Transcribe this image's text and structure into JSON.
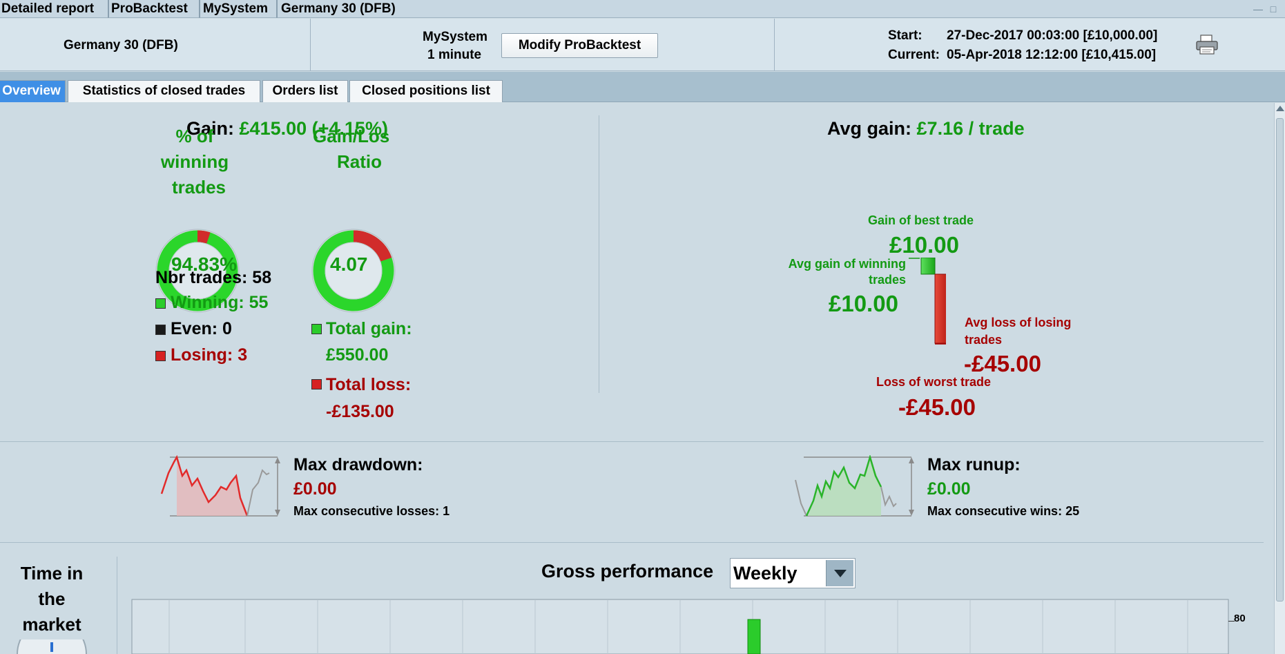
{
  "breadcrumb": [
    "Detailed report",
    "ProBacktest",
    "MySystem",
    "Germany 30 (DFB)"
  ],
  "header": {
    "instrument": "Germany 30 (DFB)",
    "system_name": "MySystem",
    "timeframe": "1 minute",
    "modify_button": "Modify ProBacktest",
    "start_label": "Start:",
    "start_value": "27-Dec-2017 00:03:00 [£10,000.00]",
    "current_label": "Current:",
    "current_value": "05-Apr-2018 12:12:00 [£10,415.00]"
  },
  "tabs": [
    {
      "label": "Overview",
      "active": true
    },
    {
      "label": "Statistics of closed trades",
      "active": false
    },
    {
      "label": "Orders list",
      "active": false
    },
    {
      "label": "Closed positions list",
      "active": false
    }
  ],
  "summary": {
    "gain_label": "Gain:",
    "gain_value": "£415.00 (+4.15%)",
    "winning_pct_title": [
      "% of",
      "winning",
      "trades"
    ],
    "winning_pct_value": "94.83%",
    "winning_pct_fraction": 0.9483,
    "gl_ratio_title": [
      "Gain/Los",
      "Ratio"
    ],
    "gl_ratio_value": "4.07",
    "gl_ratio_fraction": 0.803,
    "nbr_trades": "Nbr trades: 58",
    "winning": "Winning: 55",
    "even": "Even: 0",
    "losing": "Losing: 3",
    "total_gain_label": "Total gain:",
    "total_gain_value": "£550.00",
    "total_loss_label": "Total loss:",
    "total_loss_value": "-£135.00"
  },
  "avg": {
    "avg_gain_label": "Avg gain:",
    "avg_gain_value": "£7.16 / trade",
    "best_trade_label": "Gain of best trade",
    "best_trade_value": "£10.00",
    "avg_win_label": [
      "Avg gain of winning",
      "trades"
    ],
    "avg_win_value": "£10.00",
    "avg_loss_label": [
      "Avg loss of losing",
      "trades"
    ],
    "avg_loss_value": "-£45.00",
    "worst_trade_label": "Loss of worst trade",
    "worst_trade_value": "-£45.00"
  },
  "drawdown": {
    "title": "Max drawdown:",
    "value": "£0.00",
    "consecutive": "Max consecutive losses: 1"
  },
  "runup": {
    "title": "Max runup:",
    "value": "£0.00",
    "consecutive": "Max consecutive wins: 25"
  },
  "time_in_market": {
    "title": [
      "Time in",
      "the",
      "market"
    ]
  },
  "gross_performance": {
    "title": "Gross performance",
    "period": "Weekly",
    "axis_tick": "80"
  },
  "colors": {
    "green": "#139a13",
    "red": "#a60000",
    "donut_green": "#2bd62b",
    "donut_red": "#d12b2b",
    "tab_active": "#3f8fe6"
  }
}
